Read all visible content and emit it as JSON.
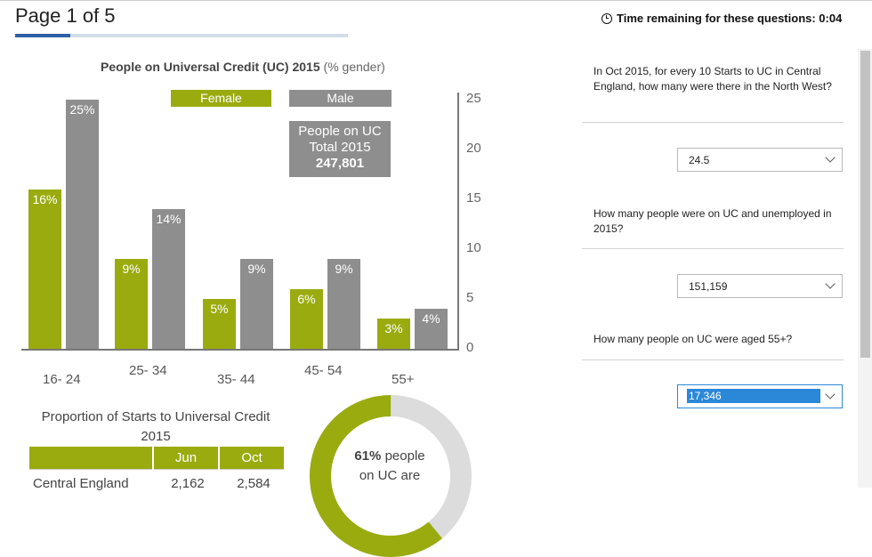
{
  "header": {
    "page_indicator": "Page 1 of 5",
    "progress": 0.2,
    "timer_label": "Time remaining for these questions: 0:04"
  },
  "infographic": {
    "chart": {
      "title": "People on Universal Credit (UC) 2015",
      "title_suffix": "(% gender)",
      "legend_female": "Female",
      "legend_male": "Male",
      "total_line1": "People on UC",
      "total_line2": "Total 2015",
      "total_value": "247,801"
    },
    "starts": {
      "title_line1": "Proportion of Starts to Universal Credit",
      "title_line2": "2015",
      "columns": [
        "Jun",
        "Oct"
      ],
      "rows": [
        {
          "region": "Central England",
          "jun": "2,162",
          "oct": "2,584"
        }
      ]
    },
    "donut": {
      "value": "61%",
      "text_line1": "people",
      "text_line2": "on UC are",
      "percent": 61
    }
  },
  "chart_data": {
    "type": "bar",
    "title": "People on Universal Credit (UC) 2015 (% gender)",
    "categories": [
      "16- 24",
      "25- 34",
      "35- 44",
      "45- 54",
      "55+"
    ],
    "series": [
      {
        "name": "Female",
        "values": [
          16,
          9,
          5,
          6,
          3
        ],
        "color": "#9aab0f"
      },
      {
        "name": "Male",
        "values": [
          25,
          14,
          9,
          9,
          4
        ],
        "color": "#8e8e8e"
      }
    ],
    "ylim": [
      0,
      25
    ],
    "yticks": [
      0,
      5,
      10,
      15,
      20,
      25
    ],
    "ylabel": "",
    "xlabel": ""
  },
  "questions": [
    {
      "text": "In Oct 2015, for every 10 Starts to UC in Central England, how many were there in the North West?",
      "answer": "24.5"
    },
    {
      "text": "How many people were on UC and unemployed in 2015?",
      "answer": "151,159"
    },
    {
      "text": "How many people on UC were aged 55+?",
      "answer": "17,346"
    }
  ]
}
